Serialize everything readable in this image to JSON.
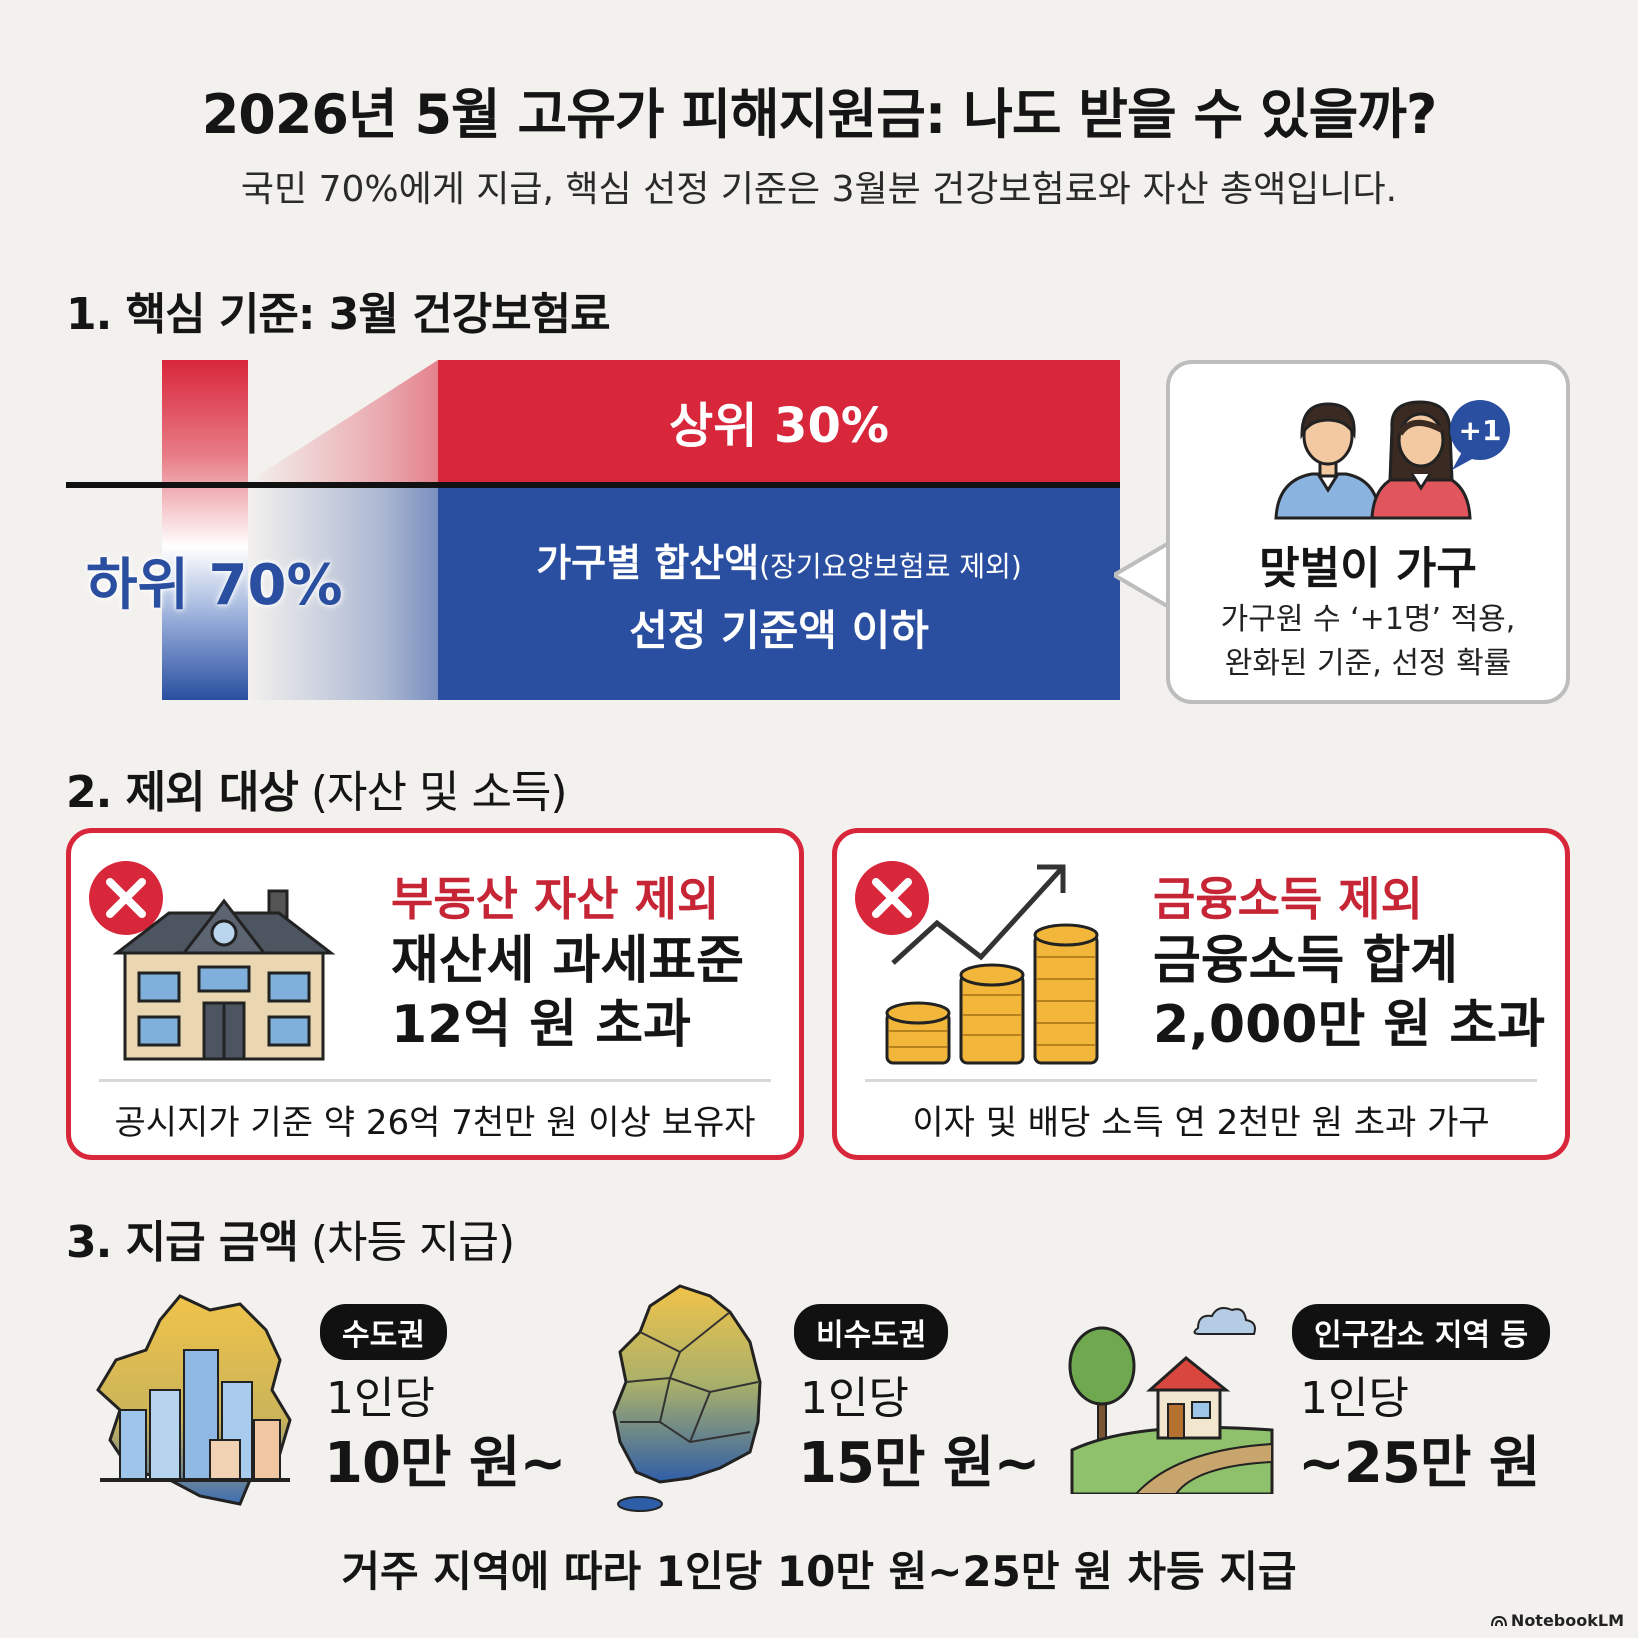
{
  "header": {
    "title": "2026년 5월 고유가 피해지원금: 나도 받을 수 있을까?",
    "subtitle": "국민 70%에게 지급, 핵심 선정 기준은 3월분 건강보험료와 자산 총액입니다."
  },
  "section1": {
    "heading": "1. 핵심 기준: 3월 건강보험료",
    "top_label": "상위 30%",
    "bottom_label": "하위 70%",
    "criteria_line1_main": "가구별 합산액",
    "criteria_line1_note": "(장기요양보험료 제외)",
    "criteria_line2": "선정 기준액 이하",
    "bubble": {
      "badge": "+1",
      "title": "맞벌이 가구",
      "line1": "가구원 수 ‘+1명’ 적용,",
      "line2": "완화된 기준, 선정 확률"
    },
    "colors": {
      "top": "#d8263b",
      "bottom": "#2a4fa0"
    }
  },
  "section2": {
    "heading_main": "2. 제외 대상",
    "heading_paren": " (자산 및 소득)",
    "cards": [
      {
        "title": "부동산 자산 제외",
        "line1": "재산세 과세표준",
        "line2": "12억 원 초과",
        "note": "공시지가 기준 약 26억 7천만 원 이상 보유자",
        "icon": "house-icon"
      },
      {
        "title": "금융소득 제외",
        "line1": "금융소득 합계",
        "line2": "2,000만 원 초과",
        "note": "이자 및 배당 소득 연 2천만 원 초과 가구",
        "icon": "coins-chart-icon"
      }
    ],
    "accent": "#d8263b"
  },
  "section3": {
    "heading_main": "3. 지급 금액",
    "heading_paren": " (차등 지급)",
    "regions": [
      {
        "tag": "수도권",
        "per": "1인당",
        "amount": "10만 원~",
        "icon": "city-map-icon"
      },
      {
        "tag": "비수도권",
        "per": "1인당",
        "amount": "15만 원~",
        "icon": "korea-map-icon"
      },
      {
        "tag": "인구감소 지역 등",
        "per": "1인당",
        "amount": "~25만 원",
        "icon": "rural-house-icon"
      }
    ],
    "footer": "거주 지역에 따라 1인당 10만 원~25만 원 차등 지급"
  },
  "brand": "NotebookLM"
}
